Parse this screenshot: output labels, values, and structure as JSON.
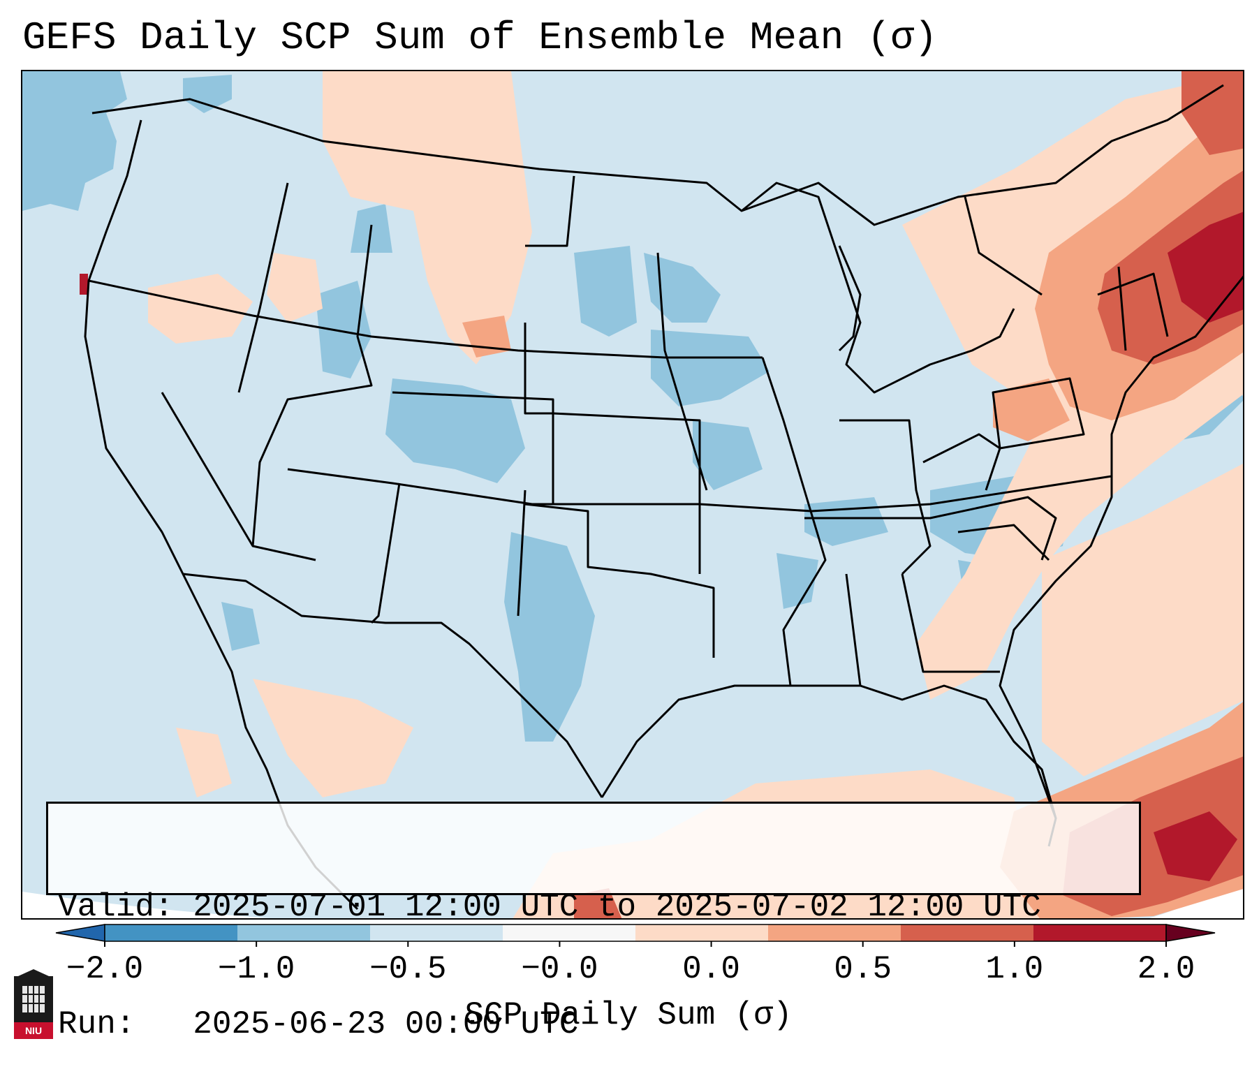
{
  "title": "GEFS Daily SCP Sum of Ensemble Mean (σ)",
  "info": {
    "valid_line": "Valid: 2025-07-01 12:00 UTC to 2025-07-02 12:00 UTC",
    "run_line": "Run:   2025-06-23 00:00 UTC"
  },
  "colorbar": {
    "label": "SCP Daily Sum (σ)",
    "ticks": [
      "−2.0",
      "−1.0",
      "−0.5",
      "−0.0",
      "0.0",
      "0.5",
      "1.0",
      "2.0"
    ],
    "colors": [
      "#2166ac",
      "#4393c3",
      "#92c5de",
      "#d1e5f0",
      "#f7f7f7",
      "#fddbc7",
      "#f4a582",
      "#d6604d",
      "#b2182b",
      "#67001f"
    ]
  },
  "logo": {
    "text": "NIU",
    "icon": "niu-building-icon"
  }
}
